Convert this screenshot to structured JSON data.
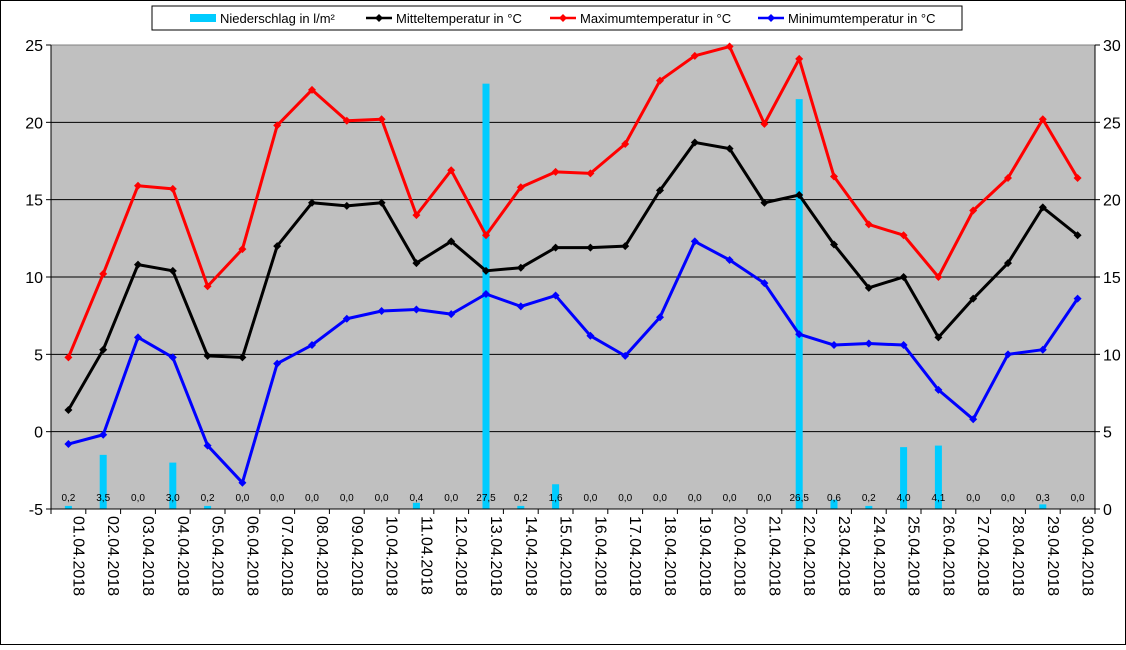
{
  "chart_data": {
    "type": "line",
    "categories": [
      "01.04.2018",
      "02.04.2018",
      "03.04.2018",
      "04.04.2018",
      "05.04.2018",
      "06.04.2018",
      "07.04.2018",
      "08.04.2018",
      "09.04.2018",
      "10.04.2018",
      "11.04.2018",
      "12.04.2018",
      "13.04.2018",
      "14.04.2018",
      "15.04.2018",
      "16.04.2018",
      "17.04.2018",
      "18.04.2018",
      "19.04.2018",
      "20.04.2018",
      "21.04.2018",
      "22.04.2018",
      "23.04.2018",
      "24.04.2018",
      "25.04.2018",
      "26.04.2018",
      "27.04.2018",
      "28.04.2018",
      "29.04.2018",
      "30.04.2018"
    ],
    "left_axis": {
      "min": -5,
      "max": 25,
      "ticks": [
        "-5",
        "0",
        "5",
        "10",
        "15",
        "20",
        "25"
      ]
    },
    "right_axis": {
      "min": 0,
      "max": 30,
      "ticks": [
        "0",
        "5",
        "10",
        "15",
        "20",
        "25",
        "30"
      ]
    },
    "grid": true,
    "legend_position": "top",
    "precipitation": {
      "name": "Niederschlag in l/m²",
      "axis": "right",
      "color": "#00ccff",
      "values": [
        0.2,
        3.5,
        0.0,
        3.0,
        0.2,
        0.0,
        0.0,
        0.0,
        0.0,
        0.0,
        0.4,
        0.0,
        27.5,
        0.2,
        1.6,
        0.0,
        0.0,
        0.0,
        0.0,
        0.0,
        0.0,
        26.5,
        0.6,
        0.2,
        4.0,
        4.1,
        0.0,
        0.0,
        0.3,
        0.0
      ],
      "labels": [
        "0,2",
        "3,5",
        "0,0",
        "3,0",
        "0,2",
        "0,0",
        "0,0",
        "0,0",
        "0,0",
        "0,0",
        "0,4",
        "0,0",
        "27,5",
        "0,2",
        "1,6",
        "0,0",
        "0,0",
        "0,0",
        "0,0",
        "0,0",
        "0,0",
        "26,5",
        "0,6",
        "0,2",
        "4,0",
        "4,1",
        "0,0",
        "0,0",
        "0,3",
        "0,0"
      ]
    },
    "series": [
      {
        "name": "Mitteltemperatur in °C",
        "axis": "left",
        "color": "#000000",
        "values": [
          1.4,
          5.3,
          10.8,
          10.4,
          4.9,
          4.8,
          12.0,
          14.8,
          14.6,
          14.8,
          10.9,
          12.3,
          10.4,
          10.6,
          11.9,
          11.9,
          12.0,
          15.6,
          18.7,
          18.3,
          14.8,
          15.3,
          12.1,
          9.3,
          10.0,
          6.1,
          8.6,
          10.9,
          14.5,
          12.7
        ]
      },
      {
        "name": "Maximumtemperatur in °C",
        "axis": "left",
        "color": "#ff0000",
        "values": [
          4.8,
          10.2,
          15.9,
          15.7,
          9.4,
          11.8,
          19.8,
          22.1,
          20.1,
          20.2,
          14.0,
          16.9,
          12.7,
          15.8,
          16.8,
          16.7,
          18.6,
          22.7,
          24.3,
          24.9,
          19.9,
          24.1,
          16.5,
          13.4,
          12.7,
          10.0,
          14.3,
          16.4,
          20.2,
          16.4
        ]
      },
      {
        "name": "Minimumtemperatur in °C",
        "axis": "left",
        "color": "#0000ff",
        "values": [
          -0.8,
          -0.2,
          6.1,
          4.8,
          -0.9,
          -3.3,
          4.4,
          5.6,
          7.3,
          7.8,
          7.9,
          7.6,
          8.9,
          8.1,
          8.8,
          6.2,
          4.9,
          7.4,
          12.3,
          11.1,
          9.6,
          6.3,
          5.6,
          5.7,
          5.6,
          2.7,
          0.8,
          5.0,
          5.3,
          8.6
        ]
      }
    ]
  }
}
